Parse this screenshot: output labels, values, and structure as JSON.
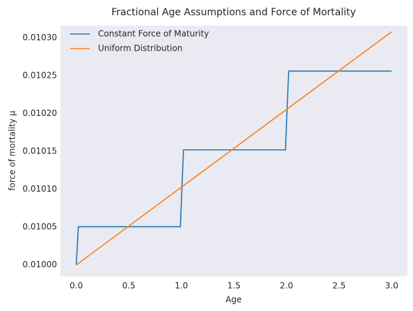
{
  "chart_data": {
    "type": "line",
    "title": "Fractional Age Assumptions and Force of Mortality",
    "x_label": "Age",
    "y_label": "force of mortality μ",
    "xlim": [
      -0.15,
      3.15
    ],
    "xticks": [
      {
        "value": 0,
        "label": "0.0"
      },
      {
        "value": 0.5,
        "label": "0.5"
      },
      {
        "value": 1,
        "label": "1.0"
      },
      {
        "value": 1.5,
        "label": "1.5"
      },
      {
        "value": 2,
        "label": "2.0"
      },
      {
        "value": 2.5,
        "label": "2.5"
      },
      {
        "value": 3,
        "label": "3.0"
      }
    ],
    "ylim": [
      0.009985,
      0.010316
    ],
    "yticks": [
      {
        "value": 0.01,
        "label": "0.01000"
      },
      {
        "value": 0.01005,
        "label": "0.01005"
      },
      {
        "value": 0.0101,
        "label": "0.01010"
      },
      {
        "value": 0.01015,
        "label": "0.01015"
      },
      {
        "value": 0.0102,
        "label": "0.01020"
      },
      {
        "value": 0.01025,
        "label": "0.01025"
      },
      {
        "value": 0.0103,
        "label": "0.01030"
      }
    ],
    "legend": "upper left",
    "series": [
      {
        "name": "Constant Force of Maturity",
        "color": "#1f77b4",
        "x": [
          0,
          0.02,
          0.99,
          1.02,
          1.99,
          2.02,
          3.0
        ],
        "values": [
          0.01,
          0.0100505,
          0.0100505,
          0.010152,
          0.010152,
          0.010256,
          0.010256
        ]
      },
      {
        "name": "Uniform Distribution",
        "color": "#ff7f0e",
        "x": [
          0,
          3.0
        ],
        "values": [
          0.01,
          0.010308
        ]
      }
    ]
  }
}
